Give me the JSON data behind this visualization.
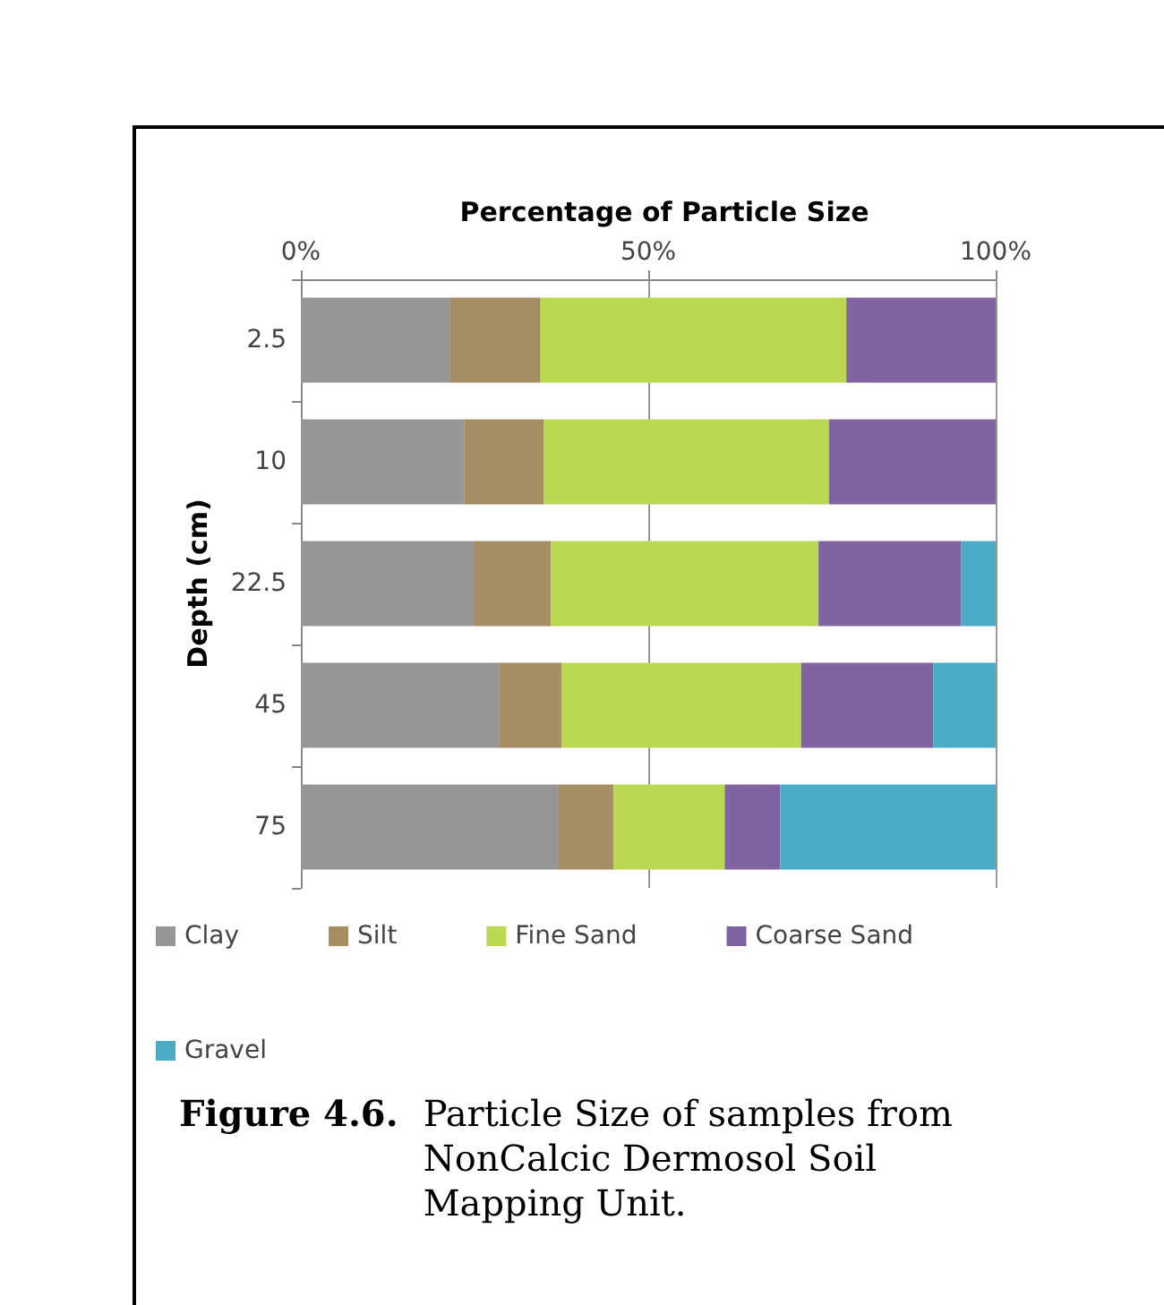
{
  "chart_data": {
    "type": "bar",
    "orientation": "horizontal",
    "stacked": true,
    "title": "Percentage of Particle Size",
    "ylabel": "Depth (cm)",
    "categories": [
      "2.5",
      "10",
      "22.5",
      "45",
      "75"
    ],
    "series": [
      {
        "name": "Clay",
        "color": "#969696",
        "values": [
          21.5,
          23.5,
          25,
          28.5,
          37
        ]
      },
      {
        "name": "Silt",
        "color": "#a58e62",
        "values": [
          13,
          11.5,
          11,
          9,
          8
        ]
      },
      {
        "name": "Fine Sand",
        "color": "#b9d952",
        "values": [
          44,
          41,
          38.5,
          34.5,
          16
        ]
      },
      {
        "name": "Coarse Sand",
        "color": "#8064a2",
        "values": [
          21.5,
          24,
          20.5,
          19,
          8
        ]
      },
      {
        "name": "Gravel",
        "color": "#4bacc6",
        "values": [
          0,
          0,
          5,
          9,
          31
        ]
      }
    ],
    "xlim": [
      0,
      100
    ],
    "xticks": [
      {
        "value": 0,
        "label": "0%"
      },
      {
        "value": 50,
        "label": "50%"
      },
      {
        "value": 100,
        "label": "100%"
      }
    ],
    "grid": "x",
    "legend": "bottom",
    "annotations": [
      "Figure 4.6. Particle Size of samples from NonCalcic Dermosol Soil Mapping Unit."
    ]
  }
}
